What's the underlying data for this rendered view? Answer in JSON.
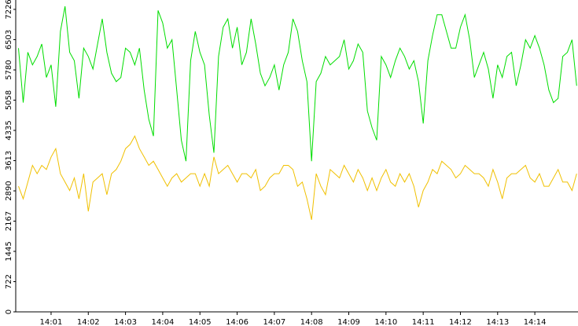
{
  "chart_data": {
    "type": "line",
    "x": [
      0.125,
      0.25,
      0.375,
      0.5,
      0.625,
      0.75,
      0.875,
      1,
      1.125,
      1.25,
      1.375,
      1.5,
      1.625,
      1.75,
      1.875,
      2,
      2.125,
      2.25,
      2.375,
      2.5,
      2.625,
      2.75,
      2.875,
      3,
      3.125,
      3.25,
      3.375,
      3.5,
      3.625,
      3.75,
      3.875,
      4,
      4.125,
      4.25,
      4.375,
      4.5,
      4.625,
      4.75,
      4.875,
      5,
      5.125,
      5.25,
      5.375,
      5.5,
      5.625,
      5.75,
      5.875,
      6,
      6.125,
      6.25,
      6.375,
      6.5,
      6.625,
      6.75,
      6.875,
      7,
      7.125,
      7.25,
      7.375,
      7.5,
      7.625,
      7.75,
      7.875,
      8,
      8.125,
      8.25,
      8.375,
      8.5,
      8.625,
      8.75,
      8.875,
      9,
      9.125,
      9.25,
      9.375,
      9.5,
      9.625,
      9.75,
      9.875,
      10,
      10.125,
      10.25,
      10.375,
      10.5,
      10.625,
      10.75,
      10.875,
      11,
      11.125,
      11.25,
      11.375,
      11.5,
      11.625,
      11.75,
      11.875,
      12,
      12.125,
      12.25,
      12.375,
      12.5,
      12.625,
      12.75,
      12.875,
      13,
      13.125,
      13.25,
      13.375,
      13.5,
      13.625,
      13.75,
      13.875,
      14,
      14.125,
      14.25,
      14.375,
      14.5,
      14.625,
      14.75,
      14.875,
      15,
      15.125
    ],
    "series": [
      {
        "color": "#00dd00",
        "values": [
          6300,
          5000,
          6200,
          5900,
          6100,
          6400,
          5600,
          5900,
          4900,
          6700,
          7300,
          6200,
          6000,
          5100,
          6300,
          6100,
          5800,
          6400,
          7000,
          6200,
          5700,
          5500,
          5600,
          6300,
          6200,
          5900,
          6300,
          5300,
          4600,
          4200,
          7200,
          6900,
          6300,
          6500,
          5300,
          4100,
          3600,
          6000,
          6700,
          6200,
          5900,
          4700,
          3800,
          6100,
          6800,
          7000,
          6300,
          6800,
          5900,
          6200,
          7000,
          6400,
          5700,
          5400,
          5600,
          5900,
          5300,
          5900,
          6200,
          7000,
          6700,
          6000,
          5500,
          3600,
          5500,
          5700,
          6100,
          5900,
          6000,
          6100,
          6500,
          5800,
          6000,
          6400,
          6200,
          4800,
          4400,
          4100,
          6100,
          5900,
          5600,
          6000,
          6300,
          6100,
          5800,
          6000,
          5500,
          4500,
          6000,
          6600,
          7100,
          7100,
          6700,
          6300,
          6300,
          6800,
          7100,
          6500,
          5600,
          5900,
          6200,
          5800,
          5100,
          5900,
          5600,
          6100,
          6200,
          5400,
          5900,
          6500,
          6300,
          6600,
          6300,
          5900,
          5300,
          5000,
          5100,
          6100,
          6200,
          6500,
          5400
        ]
      },
      {
        "color": "#f0c000",
        "values": [
          3000,
          2700,
          3100,
          3500,
          3300,
          3500,
          3400,
          3700,
          3900,
          3300,
          3100,
          2900,
          3200,
          2700,
          3300,
          2400,
          3100,
          3200,
          3300,
          2800,
          3300,
          3400,
          3600,
          3900,
          4000,
          4200,
          3900,
          3700,
          3500,
          3600,
          3400,
          3200,
          3000,
          3200,
          3300,
          3100,
          3200,
          3300,
          3300,
          3000,
          3300,
          3000,
          3700,
          3300,
          3400,
          3500,
          3300,
          3100,
          3300,
          3300,
          3200,
          3400,
          2900,
          3000,
          3200,
          3300,
          3300,
          3500,
          3500,
          3400,
          3000,
          3100,
          2700,
          2200,
          3300,
          3000,
          2800,
          3400,
          3300,
          3200,
          3500,
          3300,
          3100,
          3400,
          3200,
          2900,
          3200,
          2900,
          3200,
          3400,
          3100,
          3000,
          3300,
          3100,
          3300,
          3000,
          2500,
          2900,
          3100,
          3400,
          3300,
          3600,
          3500,
          3400,
          3200,
          3300,
          3500,
          3400,
          3300,
          3300,
          3200,
          3000,
          3400,
          3100,
          2700,
          3200,
          3300,
          3300,
          3400,
          3500,
          3200,
          3100,
          3300,
          3000,
          3000,
          3200,
          3400,
          3100,
          3100,
          2900,
          3300
        ]
      }
    ],
    "xlim": [
      0.05,
      15.16
    ],
    "xticks": [
      {
        "value": 1,
        "label": "14:01"
      },
      {
        "value": 2,
        "label": "14:02"
      },
      {
        "value": 3,
        "label": "14:03"
      },
      {
        "value": 4,
        "label": "14:04"
      },
      {
        "value": 5,
        "label": "14:05"
      },
      {
        "value": 6,
        "label": "14:06"
      },
      {
        "value": 7,
        "label": "14:07"
      },
      {
        "value": 8,
        "label": "14:08"
      },
      {
        "value": 9,
        "label": "14:09"
      },
      {
        "value": 10,
        "label": "14:10"
      },
      {
        "value": 11,
        "label": "14:11"
      },
      {
        "value": 12,
        "label": "14:12"
      },
      {
        "value": 13,
        "label": "14:13"
      },
      {
        "value": 14,
        "label": "14:14"
      }
    ],
    "ylim": [
      0,
      7450
    ],
    "yticks": [
      0,
      722,
      1445,
      2167,
      2890,
      3613,
      4335,
      5058,
      5780,
      6503,
      7226
    ]
  }
}
